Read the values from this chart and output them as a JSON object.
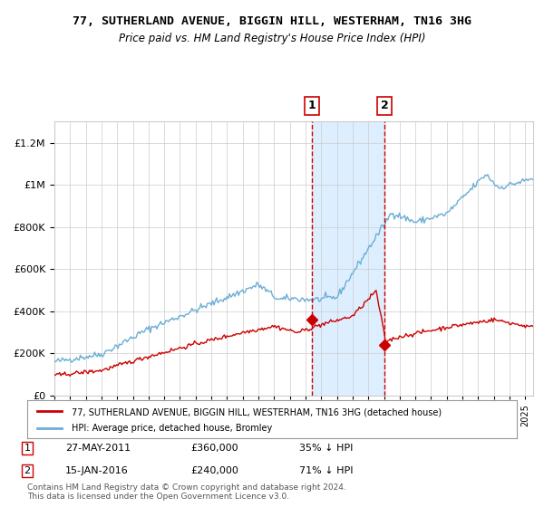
{
  "title": "77, SUTHERLAND AVENUE, BIGGIN HILL, WESTERHAM, TN16 3HG",
  "subtitle": "Price paid vs. HM Land Registry's House Price Index (HPI)",
  "hpi_color": "#6baed6",
  "price_color": "#cc0000",
  "background_color": "#ffffff",
  "grid_color": "#cccccc",
  "shade_color": "#ddeeff",
  "legend_line1": "77, SUTHERLAND AVENUE, BIGGIN HILL, WESTERHAM, TN16 3HG (detached house)",
  "legend_line2": "HPI: Average price, detached house, Bromley",
  "transaction1_date": 2011.41,
  "transaction1_price": 360000,
  "transaction1_label": "1",
  "transaction1_year": "27-MAY-2011",
  "transaction1_pct": "35% ↓ HPI",
  "transaction2_date": 2016.04,
  "transaction2_price": 240000,
  "transaction2_label": "2",
  "transaction2_year": "15-JAN-2016",
  "transaction2_pct": "71% ↓ HPI",
  "footer": "Contains HM Land Registry data © Crown copyright and database right 2024.\nThis data is licensed under the Open Government Licence v3.0.",
  "ylim": [
    0,
    1300000
  ],
  "xlim_start": 1995.0,
  "xlim_end": 2025.5
}
